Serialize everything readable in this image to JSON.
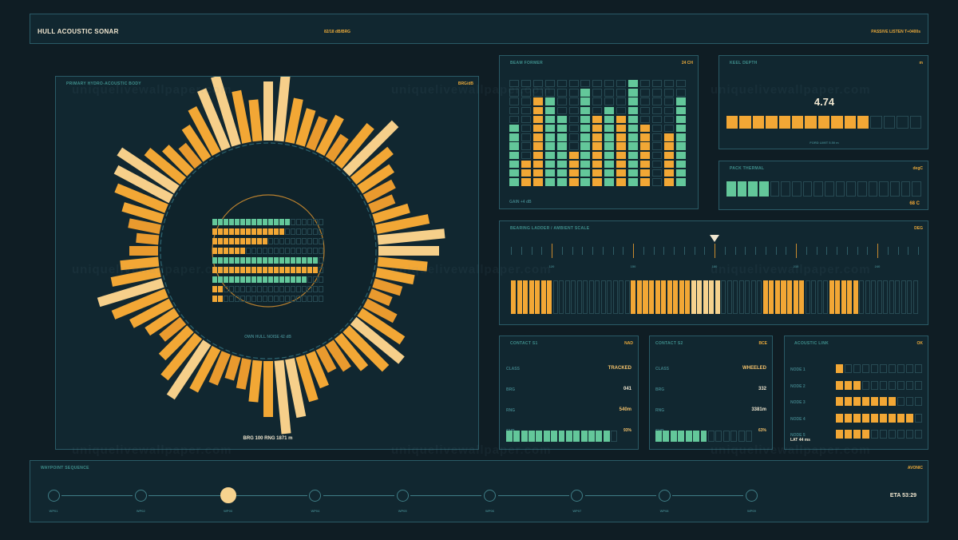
{
  "header": {
    "title": "HULL ACOUSTIC SONAR",
    "center": "82/18 dB/BRG",
    "right": "PASSIVE LISTEN T+0400s"
  },
  "main_panel": {
    "title": "PRIMARY HYDRO-ACOUSTIC BODY",
    "tag": "BRG/dB",
    "center_label": "OWN HULL NOISE 42 dB",
    "footer": "BRG 100 RNG 1871 m",
    "ring_bars": [
      0.62,
      0.78,
      0.44,
      0.35,
      0.3,
      0.4,
      0.22,
      0.52,
      0.75,
      0.48,
      0.36,
      0.28,
      0.2,
      0.34,
      0.55,
      0.72,
      0.64,
      0.5,
      0.36,
      0.24,
      0.16,
      0.3,
      0.52,
      0.66,
      0.58,
      0.4,
      0.28,
      0.2,
      0.34,
      0.46,
      0.62,
      0.8,
      0.58,
      0.4,
      0.26,
      0.18,
      0.3,
      0.48,
      0.7,
      0.55,
      0.38,
      0.22,
      0.32,
      0.44,
      0.6,
      0.72,
      0.5,
      0.36,
      0.24,
      0.16,
      0.28,
      0.4,
      0.56,
      0.66,
      0.74,
      0.46,
      0.32,
      0.2,
      0.36,
      0.52,
      0.68,
      0.78,
      0.54,
      0.4
    ],
    "inner_rows": [
      {
        "lit": 14,
        "color": "green"
      },
      {
        "lit": 13,
        "color": "orange"
      },
      {
        "lit": 10,
        "color": "orange"
      },
      {
        "lit": 6,
        "color": "orange"
      },
      {
        "lit": 19,
        "color": "green"
      },
      {
        "lit": 19,
        "color": "orange"
      },
      {
        "lit": 17,
        "color": "green"
      },
      {
        "lit": 2,
        "color": "orange"
      },
      {
        "lit": 2,
        "color": "orange"
      }
    ],
    "inner_total": 20
  },
  "beam": {
    "title": "BEAM FORMER",
    "tag": "24 CH",
    "footer": "GAIN +4 dB",
    "columns": [
      {
        "lit": 7,
        "color": "green"
      },
      {
        "lit": 3,
        "color": "orange"
      },
      {
        "lit": 10,
        "color": "orange"
      },
      {
        "lit": 10,
        "color": "green"
      },
      {
        "lit": 8,
        "color": "green"
      },
      {
        "lit": 4,
        "color": "orange"
      },
      {
        "lit": 11,
        "color": "green"
      },
      {
        "lit": 8,
        "color": "orange"
      },
      {
        "lit": 9,
        "color": "green"
      },
      {
        "lit": 8,
        "color": "orange"
      },
      {
        "lit": 12,
        "color": "green"
      },
      {
        "lit": 7,
        "color": "orange"
      },
      {
        "lit": 0,
        "color": "green"
      },
      {
        "lit": 6,
        "color": "orange"
      },
      {
        "lit": 10,
        "color": "green"
      }
    ],
    "rows": 12
  },
  "keel": {
    "title": "KEEL DEPTH",
    "tag": "m",
    "value": "4.74",
    "footer": "FORD LIMIT 5.50 m",
    "lit": 11,
    "total": 15
  },
  "thermal": {
    "title": "PACK THERMAL",
    "tag": "degC",
    "value": "68 C",
    "lit": 4,
    "total": 18
  },
  "bearing": {
    "title": "BEARING LADDER / AMBIENT SCALE",
    "tag": "DEG",
    "tick_labels": [
      "120",
      "150",
      "180",
      "210",
      "240"
    ],
    "bars": [
      1,
      1,
      1,
      1,
      1,
      1,
      1,
      0,
      0,
      0,
      0,
      0,
      0,
      0,
      0,
      0,
      0,
      0,
      0,
      0,
      1,
      1,
      1,
      1,
      1,
      1,
      1,
      1,
      1,
      1,
      2,
      2,
      2,
      2,
      2,
      0,
      0,
      0,
      0,
      0,
      0,
      0,
      1,
      1,
      1,
      1,
      1,
      1,
      1,
      0,
      0,
      0,
      0,
      1,
      1,
      1,
      1,
      1,
      0,
      0,
      0,
      0,
      0,
      0,
      0,
      0,
      0,
      0
    ]
  },
  "contacts": [
    {
      "title": "CONTACT S1",
      "tag": "NAD",
      "rows": [
        {
          "label": "CLASS",
          "value": "TRACKED",
          "accent": true
        },
        {
          "label": "BRG",
          "value": "041",
          "accent": false
        },
        {
          "label": "RNG",
          "value": "540m",
          "accent": true
        }
      ],
      "bar_label": "SNR",
      "percent": "93%",
      "lit": 14,
      "total": 15
    },
    {
      "title": "CONTACT S2",
      "tag": "BCE",
      "rows": [
        {
          "label": "CLASS",
          "value": "WHEELED",
          "accent": true
        },
        {
          "label": "BRG",
          "value": "332",
          "accent": false
        },
        {
          "label": "RNG",
          "value": "3381m",
          "accent": false
        }
      ],
      "bar_label": "SNR",
      "percent": "63%",
      "lit": 7,
      "total": 13
    }
  ],
  "acoustic": {
    "title": "ACOUSTIC LINK",
    "tag": "OK",
    "rows": [
      {
        "label": "NODE 1",
        "lit": 1
      },
      {
        "label": "NODE 2",
        "lit": 3
      },
      {
        "label": "NODE 3",
        "lit": 7
      },
      {
        "label": "NODE 4",
        "lit": 9
      },
      {
        "label": "NODE 5",
        "lit": 4
      }
    ],
    "total": 10,
    "footer": "LAT 44 ms"
  },
  "waypoints": {
    "title": "WAYPOINT SEQUENCE",
    "tag": "AVONIC",
    "eta": "ETA 53:29",
    "labels": [
      "WP01",
      "WP02",
      "WP03",
      "WP04",
      "WP05",
      "WP06",
      "WP07",
      "WP08",
      "WP09"
    ],
    "active": 2
  },
  "colors": {
    "orange": "#f2a735",
    "green": "#63c79a",
    "light": "#f6d28e",
    "border": "#2a5a66"
  },
  "watermark": "uniquelivewallpaper.com"
}
